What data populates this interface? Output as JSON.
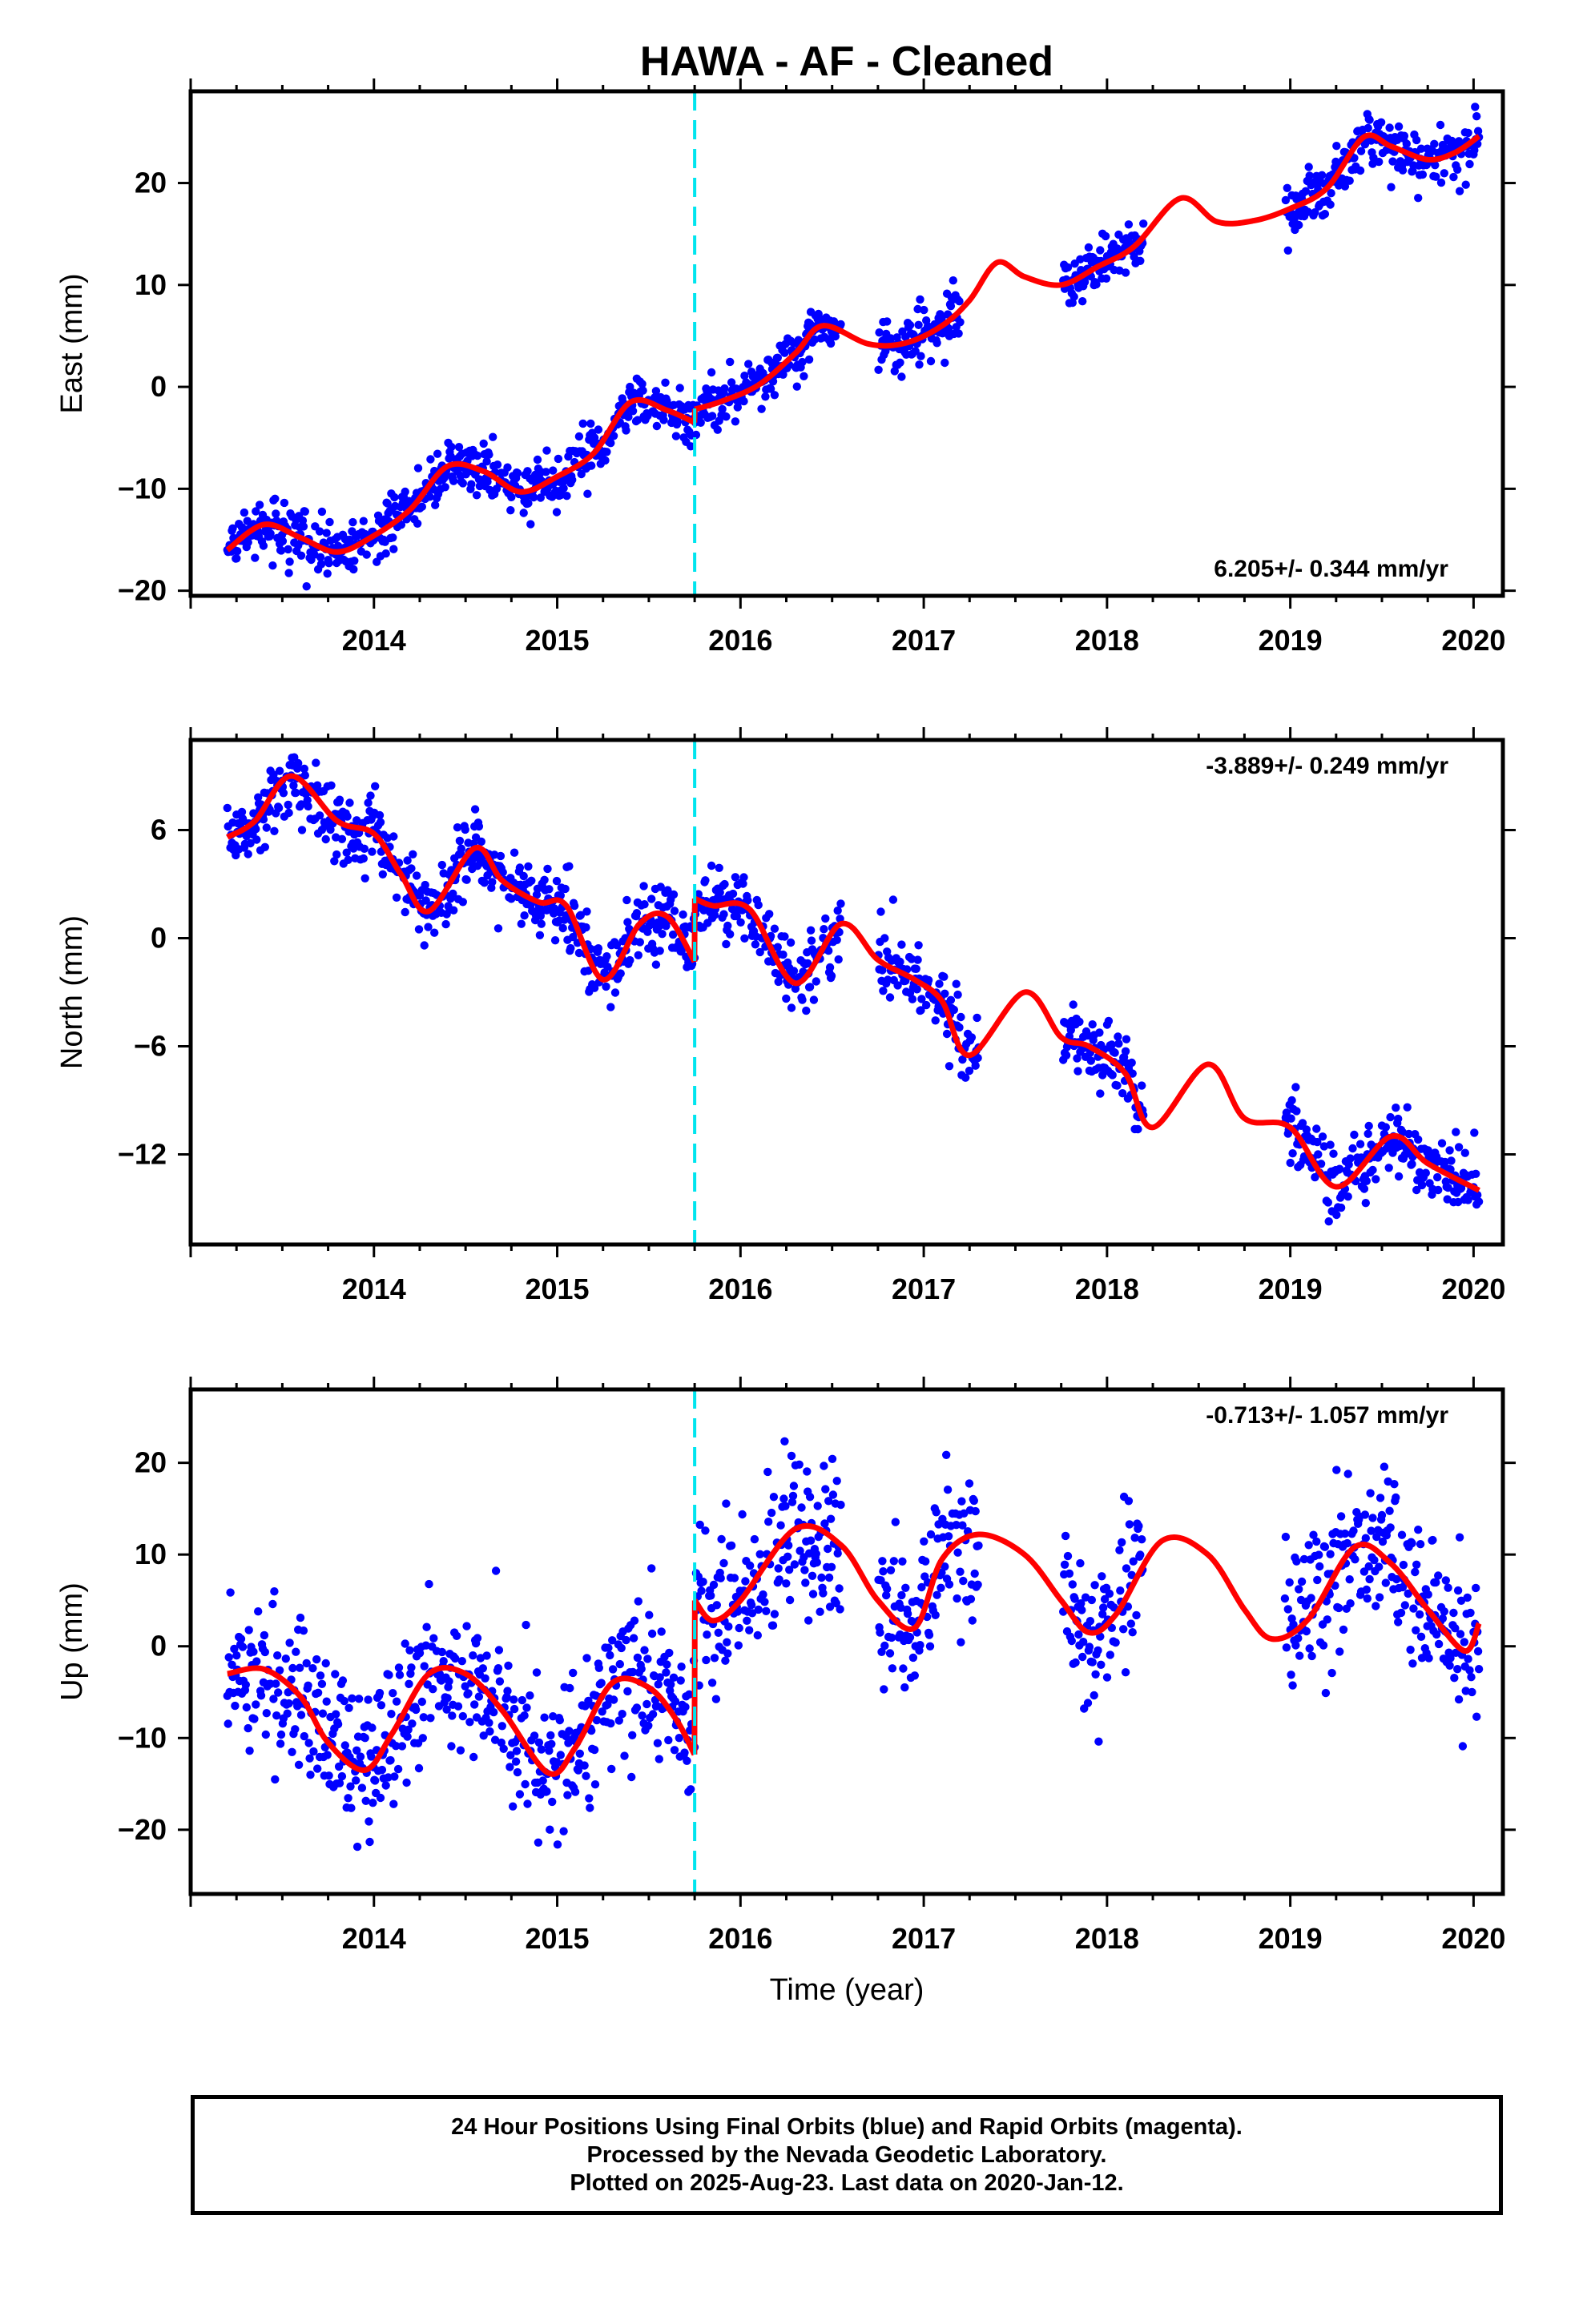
{
  "title": "HAWA  - AF - Cleaned",
  "colors": {
    "points": "#0000ff",
    "model": "#ff0000",
    "offset_line": "#00e5ee",
    "frame": "#000000"
  },
  "footer": {
    "line1": "24 Hour Positions Using Final Orbits (blue) and Rapid Orbits (magenta).",
    "line2": "Processed by the Nevada Geodetic Laboratory.",
    "line3": "Plotted on 2025-Aug-23. Last data on 2020-Jan-12."
  },
  "chart_data": [
    {
      "type": "scatter",
      "component": "east",
      "ylabel": "East (mm)",
      "xlabel": "",
      "xlim": [
        2013.0,
        2020.16
      ],
      "ylim": [
        -20.5,
        29.0
      ],
      "xticks": [
        2014,
        2015,
        2016,
        2017,
        2018,
        2019,
        2020
      ],
      "xtick_labels": [
        "2014",
        "2015",
        "2016",
        "2017",
        "2018",
        "2019",
        "2020"
      ],
      "yticks": [
        -20,
        -10,
        0,
        10,
        20
      ],
      "ytick_labels": [
        "−20",
        "−10",
        "0",
        "10",
        "20"
      ],
      "rate_label": "6.205+/- 0.344 mm/yr",
      "offset_epoch": 2015.75,
      "data_gaps": [
        [
          2016.55,
          2016.75
        ],
        [
          2017.2,
          2017.76
        ],
        [
          2018.2,
          2018.97
        ]
      ],
      "data_range": [
        2013.2,
        2020.03
      ],
      "model": {
        "x": [
          2013.2,
          2013.4,
          2013.6,
          2013.8,
          2014.0,
          2014.2,
          2014.4,
          2014.6,
          2014.8,
          2015.0,
          2015.2,
          2015.4,
          2015.6,
          2015.749,
          2015.751,
          2015.9,
          2016.1,
          2016.3,
          2016.45,
          2016.7,
          2016.9,
          2017.1,
          2017.25,
          2017.4,
          2017.55,
          2017.75,
          2017.95,
          2018.15,
          2018.4,
          2018.6,
          2018.8,
          2019.0,
          2019.2,
          2019.4,
          2019.55,
          2019.75,
          2019.9,
          2020.03
        ],
        "y": [
          -16.0,
          -13.5,
          -14.8,
          -16.2,
          -14.6,
          -12.0,
          -7.8,
          -8.3,
          -10.3,
          -8.8,
          -6.5,
          -1.5,
          -2.3,
          -3.5,
          -2.2,
          -1.4,
          0.2,
          3.3,
          6.0,
          4.2,
          4.3,
          6.0,
          8.5,
          12.2,
          10.8,
          10.0,
          11.8,
          13.8,
          18.5,
          16.2,
          16.3,
          17.5,
          19.5,
          24.5,
          23.6,
          22.3,
          23.0,
          24.6
        ]
      }
    },
    {
      "type": "scatter",
      "component": "north",
      "ylabel": "North (mm)",
      "xlabel": "",
      "xlim": [
        2013.0,
        2020.16
      ],
      "ylim": [
        -17.0,
        11.0
      ],
      "xticks": [
        2014,
        2015,
        2016,
        2017,
        2018,
        2019,
        2020
      ],
      "xtick_labels": [
        "2014",
        "2015",
        "2016",
        "2017",
        "2018",
        "2019",
        "2020"
      ],
      "yticks": [
        -12,
        -6,
        0,
        6
      ],
      "ytick_labels": [
        "−12",
        "−6",
        "0",
        "6"
      ],
      "rate_label": "-3.889+/- 0.249 mm/yr",
      "offset_epoch": 2015.75,
      "data_gaps": [
        [
          2016.55,
          2016.75
        ],
        [
          2017.3,
          2017.76
        ],
        [
          2018.2,
          2018.97
        ]
      ],
      "data_range": [
        2013.2,
        2020.03
      ],
      "model": {
        "x": [
          2013.2,
          2013.35,
          2013.55,
          2013.8,
          2014.0,
          2014.15,
          2014.3,
          2014.55,
          2014.7,
          2014.9,
          2015.05,
          2015.25,
          2015.45,
          2015.6,
          2015.749,
          2015.751,
          2015.85,
          2016.05,
          2016.3,
          2016.55,
          2016.75,
          2016.95,
          2017.1,
          2017.25,
          2017.55,
          2017.75,
          2017.9,
          2018.1,
          2018.25,
          2018.55,
          2018.75,
          2019.0,
          2019.25,
          2019.55,
          2019.75,
          2020.03
        ],
        "y": [
          5.6,
          6.5,
          9.0,
          6.5,
          5.8,
          3.5,
          1.5,
          5.0,
          3.2,
          2.0,
          1.8,
          -2.3,
          0.8,
          1.2,
          -1.3,
          2.2,
          1.8,
          1.6,
          -2.5,
          0.8,
          -1.2,
          -2.3,
          -3.5,
          -6.5,
          -3.0,
          -5.5,
          -6.0,
          -7.5,
          -10.5,
          -7.0,
          -10.0,
          -10.5,
          -13.8,
          -11.0,
          -12.5,
          -14.0
        ]
      }
    },
    {
      "type": "scatter",
      "component": "up",
      "ylabel": "Up (mm)",
      "xlabel": "Time (year)",
      "xlim": [
        2013.0,
        2020.16
      ],
      "ylim": [
        -27.0,
        28.0
      ],
      "xticks": [
        2014,
        2015,
        2016,
        2017,
        2018,
        2019,
        2020
      ],
      "xtick_labels": [
        "2014",
        "2015",
        "2016",
        "2017",
        "2018",
        "2019",
        "2020"
      ],
      "yticks": [
        -20,
        -10,
        0,
        10,
        20
      ],
      "ytick_labels": [
        "−20",
        "−10",
        "0",
        "10",
        "20"
      ],
      "rate_label": "-0.713+/- 1.057 mm/yr",
      "offset_epoch": 2015.75,
      "data_gaps": [
        [
          2016.55,
          2016.75
        ],
        [
          2017.3,
          2017.76
        ],
        [
          2018.2,
          2018.97
        ]
      ],
      "data_range": [
        2013.2,
        2020.03
      ],
      "model": {
        "x": [
          2013.2,
          2013.4,
          2013.6,
          2013.75,
          2013.95,
          2014.1,
          2014.3,
          2014.5,
          2014.7,
          2014.95,
          2015.1,
          2015.3,
          2015.5,
          2015.65,
          2015.749,
          2015.751,
          2015.85,
          2016.0,
          2016.3,
          2016.55,
          2016.75,
          2016.95,
          2017.1,
          2017.3,
          2017.55,
          2017.75,
          2017.9,
          2018.05,
          2018.3,
          2018.55,
          2018.75,
          2018.9,
          2019.1,
          2019.35,
          2019.55,
          2019.75,
          2019.95,
          2020.03
        ],
        "y": [
          -3.0,
          -2.5,
          -5.5,
          -10.5,
          -13.5,
          -9.5,
          -3.0,
          -3.0,
          -7.0,
          -13.8,
          -11.0,
          -4.0,
          -4.5,
          -8.0,
          -11.8,
          5.0,
          2.8,
          5.0,
          12.8,
          11.0,
          5.0,
          2.0,
          9.5,
          12.2,
          10.0,
          5.0,
          1.5,
          3.5,
          11.5,
          10.0,
          4.0,
          0.8,
          3.0,
          10.8,
          9.0,
          4.0,
          -0.5,
          2.5
        ]
      }
    }
  ]
}
